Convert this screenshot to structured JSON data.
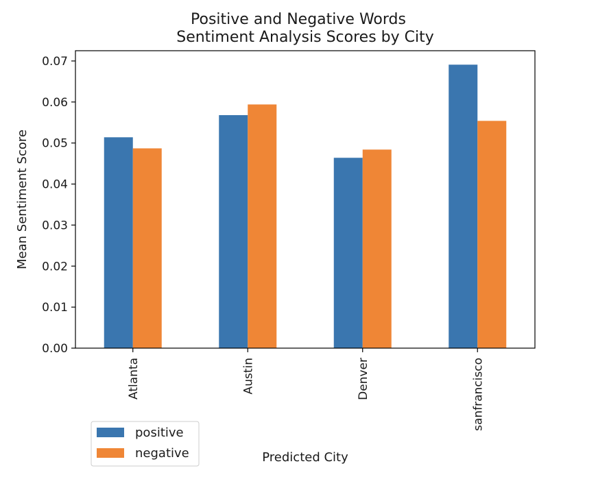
{
  "chart_data": {
    "type": "bar",
    "title": [
      "Positive and Negative Words",
      "Sentiment Analysis Scores by City"
    ],
    "xlabel": "Predicted City",
    "ylabel": "Mean Sentiment Score",
    "categories": [
      "Atlanta",
      "Austin",
      "Denver",
      "sanfrancisco"
    ],
    "series": [
      {
        "name": "positive",
        "color": "#3a76af",
        "values": [
          0.0514,
          0.0568,
          0.0464,
          0.0691
        ]
      },
      {
        "name": "negative",
        "color": "#ef8636",
        "values": [
          0.0487,
          0.0594,
          0.0484,
          0.0554
        ]
      }
    ],
    "ylim": [
      0,
      0.0725
    ],
    "yticks": [
      "0.00",
      "0.01",
      "0.02",
      "0.03",
      "0.04",
      "0.05",
      "0.06",
      "0.07"
    ],
    "grid": false,
    "legend_position": "lower-left, outside axes"
  }
}
